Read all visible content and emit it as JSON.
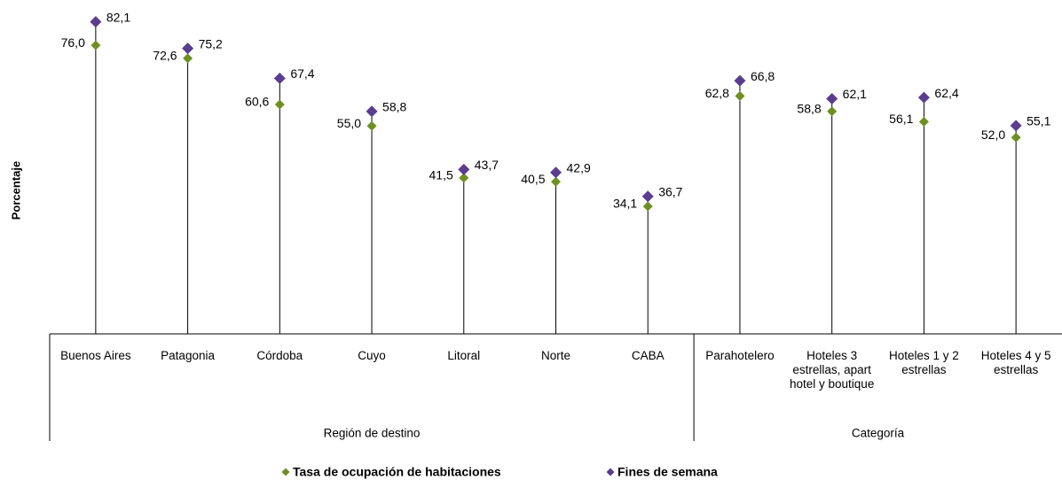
{
  "chart_data": {
    "type": "dot",
    "y_label": "Porcentaje",
    "groups": [
      {
        "label": "Región de destino",
        "categories": [
          "Buenos Aires",
          "Patagonia",
          "Córdoba",
          "Cuyo",
          "Litoral",
          "Norte",
          "CABA"
        ]
      },
      {
        "label": "Categoría",
        "categories": [
          "Parahotelero",
          "Hoteles 3 estrellas, apart hotel y boutique",
          "Hoteles 1 y 2 estrellas",
          "Hoteles 4 y 5 estrellas"
        ]
      }
    ],
    "series": [
      {
        "name": "Tasa de ocupación de habitaciones",
        "color": "#6e8f24",
        "values": [
          76.0,
          72.6,
          60.6,
          55.0,
          41.5,
          40.5,
          34.1,
          62.8,
          58.8,
          56.1,
          52.0
        ],
        "value_labels": [
          "76,0",
          "72,6",
          "60,6",
          "55,0",
          "41,5",
          "40,5",
          "34,1",
          "62,8",
          "58,8",
          "56,1",
          "52,0"
        ]
      },
      {
        "name": "Fines de semana",
        "color": "#5b3d8f",
        "values": [
          82.1,
          75.2,
          67.4,
          58.8,
          43.7,
          42.9,
          36.7,
          66.8,
          62.1,
          62.4,
          55.1
        ],
        "value_labels": [
          "82,1",
          "75,2",
          "67,4",
          "58,8",
          "43,7",
          "42,9",
          "36,7",
          "66,8",
          "62,1",
          "62,4",
          "55,1"
        ]
      }
    ],
    "ylim": [
      0,
      87
    ]
  }
}
